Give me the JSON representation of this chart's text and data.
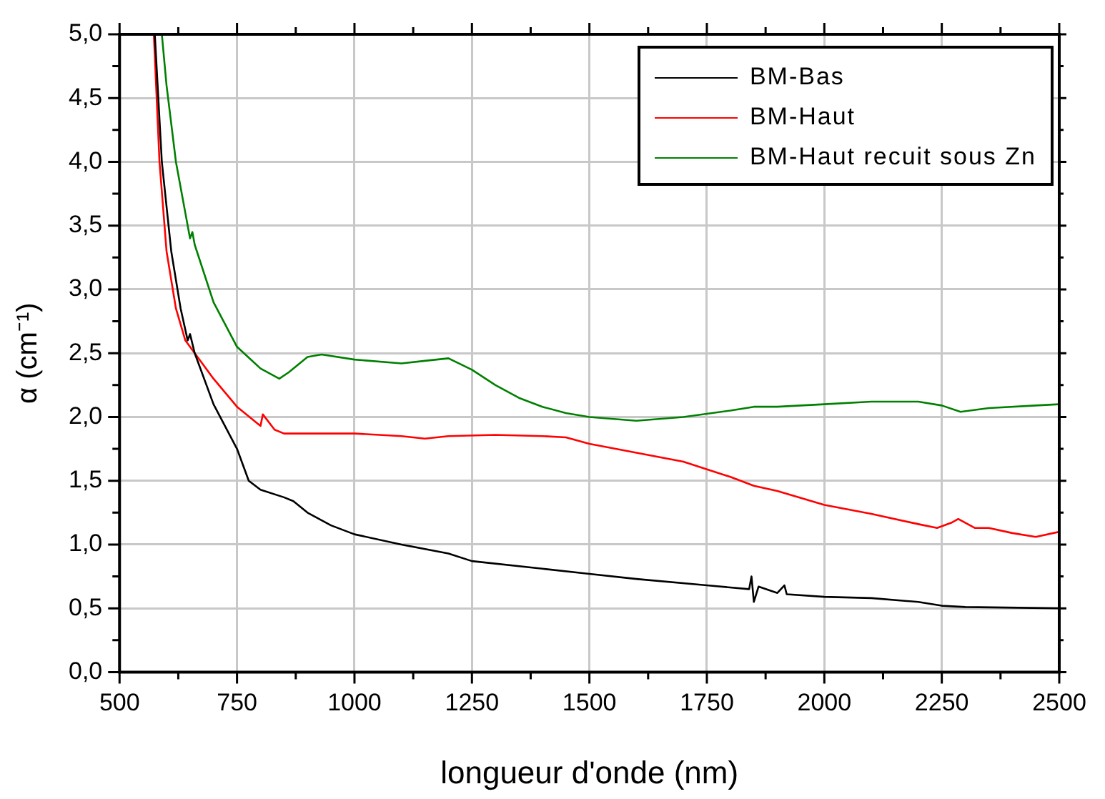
{
  "chart_data": {
    "type": "line",
    "xlabel": "longueur d'onde (nm)",
    "ylabel": "α (cm⁻¹)",
    "xlim": [
      500,
      2500
    ],
    "xticks": [
      500,
      750,
      1000,
      1250,
      1500,
      1750,
      2000,
      2250,
      2500
    ],
    "ylim": [
      0,
      5
    ],
    "yticks": [
      {
        "value": 0,
        "label": "0,0"
      },
      {
        "value": 0.5,
        "label": "0,5"
      },
      {
        "value": 1,
        "label": "1,0"
      },
      {
        "value": 1.5,
        "label": "1,5"
      },
      {
        "value": 2,
        "label": "2,0"
      },
      {
        "value": 2.5,
        "label": "2,5"
      },
      {
        "value": 3,
        "label": "3,0"
      },
      {
        "value": 3.5,
        "label": "3,5"
      },
      {
        "value": 4,
        "label": "4,0"
      },
      {
        "value": 4.5,
        "label": "4,5"
      },
      {
        "value": 5,
        "label": "5,0"
      }
    ],
    "grid": true,
    "legend": "top right",
    "marker": "none",
    "line_style": "solid",
    "series": [
      {
        "name": "BM-Bas",
        "color": "#000000",
        "x": [
          575,
          590,
          610,
          630,
          645,
          650,
          660,
          700,
          750,
          775,
          800,
          850,
          870,
          900,
          950,
          1000,
          1100,
          1200,
          1250,
          1400,
          1500,
          1600,
          1750,
          1840,
          1845,
          1850,
          1860,
          1900,
          1915,
          1920,
          2000,
          2100,
          2200,
          2250,
          2300,
          2500
        ],
        "values": [
          5.0,
          4.0,
          3.3,
          2.85,
          2.6,
          2.65,
          2.5,
          2.1,
          1.75,
          1.5,
          1.43,
          1.37,
          1.34,
          1.25,
          1.15,
          1.08,
          1.0,
          0.93,
          0.87,
          0.81,
          0.77,
          0.73,
          0.68,
          0.65,
          0.75,
          0.55,
          0.67,
          0.62,
          0.68,
          0.61,
          0.59,
          0.58,
          0.55,
          0.52,
          0.51,
          0.5
        ]
      },
      {
        "name": "BM-Haut",
        "color": "#ff0000",
        "x": [
          573,
          585,
          600,
          620,
          640,
          660,
          700,
          750,
          800,
          805,
          830,
          850,
          1000,
          1100,
          1150,
          1200,
          1300,
          1400,
          1450,
          1500,
          1600,
          1700,
          1800,
          1850,
          1900,
          2000,
          2100,
          2200,
          2240,
          2270,
          2285,
          2320,
          2350,
          2400,
          2450,
          2500
        ],
        "values": [
          5.0,
          4.0,
          3.3,
          2.85,
          2.6,
          2.5,
          2.3,
          2.08,
          1.93,
          2.02,
          1.9,
          1.87,
          1.87,
          1.85,
          1.83,
          1.85,
          1.86,
          1.85,
          1.84,
          1.79,
          1.72,
          1.65,
          1.53,
          1.46,
          1.42,
          1.31,
          1.24,
          1.16,
          1.13,
          1.17,
          1.2,
          1.13,
          1.13,
          1.09,
          1.06,
          1.1
        ]
      },
      {
        "name": "BM-Haut recuit sous Zn",
        "color": "#008000",
        "x": [
          590,
          600,
          620,
          640,
          650,
          655,
          660,
          700,
          750,
          800,
          840,
          860,
          900,
          930,
          1000,
          1100,
          1150,
          1200,
          1250,
          1300,
          1350,
          1400,
          1450,
          1500,
          1600,
          1700,
          1800,
          1850,
          1900,
          2000,
          2100,
          2200,
          2250,
          2290,
          2350,
          2450,
          2500
        ],
        "values": [
          5.0,
          4.6,
          4.0,
          3.6,
          3.4,
          3.45,
          3.35,
          2.9,
          2.55,
          2.38,
          2.3,
          2.35,
          2.47,
          2.49,
          2.45,
          2.42,
          2.44,
          2.46,
          2.37,
          2.25,
          2.15,
          2.08,
          2.03,
          2.0,
          1.97,
          2.0,
          2.05,
          2.08,
          2.08,
          2.1,
          2.12,
          2.12,
          2.09,
          2.04,
          2.07,
          2.09,
          2.1
        ]
      }
    ]
  }
}
